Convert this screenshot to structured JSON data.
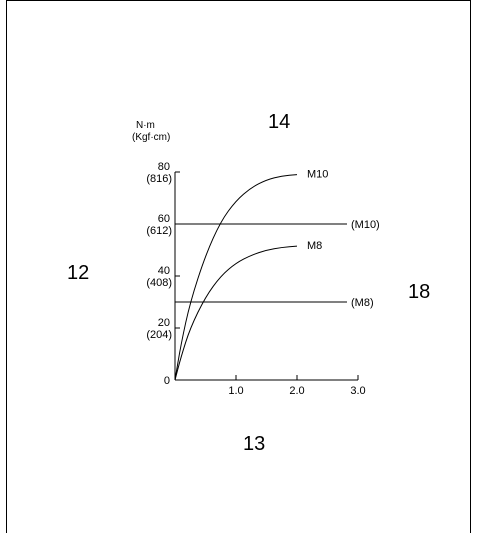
{
  "callouts": {
    "top": "14",
    "left": "12",
    "right": "18",
    "bottom": "13"
  },
  "chart_data": {
    "type": "line",
    "ylabel_line1": "N·m",
    "ylabel_line2": "(Kgf·cm)",
    "xlim": [
      0,
      3.0
    ],
    "ylim": [
      0,
      80
    ],
    "x_ticks": [
      {
        "value": 1.0,
        "label": "1.0"
      },
      {
        "value": 2.0,
        "label": "2.0"
      },
      {
        "value": 3.0,
        "label": "3.0"
      }
    ],
    "y_ticks": [
      {
        "value": 0,
        "label": "0",
        "sub": ""
      },
      {
        "value": 20,
        "label": "20",
        "sub": "(204)"
      },
      {
        "value": 40,
        "label": "40",
        "sub": "(408)"
      },
      {
        "value": 60,
        "label": "60",
        "sub": "(612)"
      },
      {
        "value": 80,
        "label": "80",
        "sub": "(816)"
      }
    ],
    "series": [
      {
        "name": "M10",
        "x": [
          0,
          0.1,
          0.25,
          0.5,
          0.75,
          1.0,
          1.25,
          1.5,
          1.75,
          2.0
        ],
        "values": [
          0,
          14,
          30,
          48,
          61,
          69,
          74,
          77,
          78.5,
          79
        ]
      },
      {
        "name": "M8",
        "x": [
          0,
          0.1,
          0.25,
          0.5,
          0.75,
          1.0,
          1.25,
          1.5,
          1.75,
          2.0
        ],
        "values": [
          0,
          9,
          20,
          32,
          40,
          45,
          48,
          50,
          51,
          51.5
        ]
      }
    ],
    "reference_lines": [
      {
        "name": "(M10)",
        "value": 60
      },
      {
        "name": "(M8)",
        "value": 30
      }
    ]
  }
}
